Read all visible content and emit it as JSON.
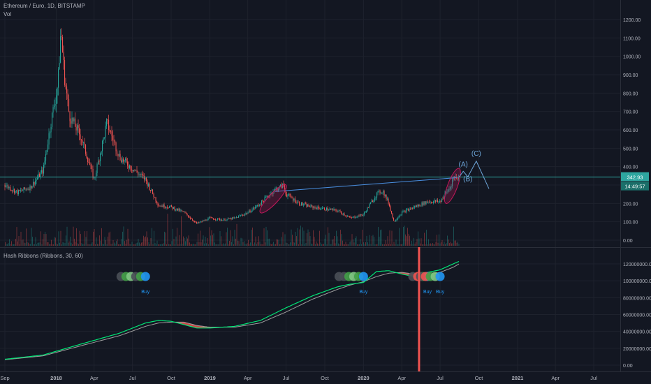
{
  "chart_data": [
    {
      "type": "candlestick",
      "title": "Ethereum / Euro, 1D, BITSTAMP",
      "volume_label": "Vol",
      "x_ticks": [
        "Sep",
        "2018",
        "Apr",
        "Jul",
        "Oct",
        "2019",
        "Apr",
        "Jul",
        "Oct",
        "2020",
        "Apr",
        "Jul",
        "Oct",
        "2021",
        "Apr",
        "Jul"
      ],
      "y_ticks": [
        "0.00",
        "100.00",
        "200.00",
        "300.00",
        "400.00",
        "500.00",
        "600.00",
        "700.00",
        "800.00",
        "900.00",
        "1000.00",
        "1100.00",
        "1200.00"
      ],
      "ylim": [
        -20,
        1260
      ],
      "price_path": [
        {
          "x": "2017-09",
          "y": 300
        },
        {
          "x": "2017-10",
          "y": 260
        },
        {
          "x": "2017-11",
          "y": 290
        },
        {
          "x": "2017-12",
          "y": 380
        },
        {
          "x": "2017-12-20",
          "y": 650
        },
        {
          "x": "2018-01-05",
          "y": 850
        },
        {
          "x": "2018-01-12",
          "y": 1150
        },
        {
          "x": "2018-01-20",
          "y": 900
        },
        {
          "x": "2018-02",
          "y": 680
        },
        {
          "x": "2018-03",
          "y": 560
        },
        {
          "x": "2018-04",
          "y": 330
        },
        {
          "x": "2018-04-25",
          "y": 570
        },
        {
          "x": "2018-05",
          "y": 640
        },
        {
          "x": "2018-06",
          "y": 450
        },
        {
          "x": "2018-07",
          "y": 390
        },
        {
          "x": "2018-08",
          "y": 330
        },
        {
          "x": "2018-09",
          "y": 190
        },
        {
          "x": "2018-10",
          "y": 180
        },
        {
          "x": "2018-11",
          "y": 150
        },
        {
          "x": "2018-12",
          "y": 90
        },
        {
          "x": "2019-01",
          "y": 120
        },
        {
          "x": "2019-02",
          "y": 110
        },
        {
          "x": "2019-03",
          "y": 120
        },
        {
          "x": "2019-04",
          "y": 150
        },
        {
          "x": "2019-05",
          "y": 200
        },
        {
          "x": "2019-06",
          "y": 270
        },
        {
          "x": "2019-06-25",
          "y": 300
        },
        {
          "x": "2019-07",
          "y": 250
        },
        {
          "x": "2019-08",
          "y": 200
        },
        {
          "x": "2019-09",
          "y": 180
        },
        {
          "x": "2019-10",
          "y": 170
        },
        {
          "x": "2019-11",
          "y": 160
        },
        {
          "x": "2019-12",
          "y": 120
        },
        {
          "x": "2020-01",
          "y": 140
        },
        {
          "x": "2020-02",
          "y": 250
        },
        {
          "x": "2020-02-15",
          "y": 270
        },
        {
          "x": "2020-03",
          "y": 200
        },
        {
          "x": "2020-03-13",
          "y": 100
        },
        {
          "x": "2020-04",
          "y": 150
        },
        {
          "x": "2020-05",
          "y": 180
        },
        {
          "x": "2020-06",
          "y": 210
        },
        {
          "x": "2020-07",
          "y": 210
        },
        {
          "x": "2020-07-25",
          "y": 290
        },
        {
          "x": "2020-08",
          "y": 340
        },
        {
          "x": "2020-08-15",
          "y": 343
        }
      ],
      "projection": [
        {
          "x": "2020-08-15",
          "y": 343
        },
        {
          "x": "2020-08-25",
          "y": 375
        },
        {
          "x": "2020-09-05",
          "y": 345
        },
        {
          "x": "2020-09-25",
          "y": 430
        },
        {
          "x": "2020-10-25",
          "y": 280
        }
      ],
      "wave_labels": [
        {
          "label": "(A)",
          "x": "2020-08-25",
          "y": 400
        },
        {
          "label": "(B)",
          "x": "2020-09-05",
          "y": 320
        },
        {
          "label": "(C)",
          "x": "2020-09-25",
          "y": 460
        }
      ],
      "trendline": [
        {
          "x": "2019-06-05",
          "y": 265
        },
        {
          "x": "2020-08-10",
          "y": 340
        }
      ],
      "horizontal_line": 343,
      "current_price": "342.93",
      "countdown": "14:49:57",
      "highlight_ellipses": [
        {
          "from": "2019-05",
          "to": "2019-07",
          "y_low": 150,
          "y_high": 300
        },
        {
          "from": "2020-07-15",
          "to": "2020-08-15",
          "y_low": 200,
          "y_high": 390
        }
      ],
      "colors": {
        "up": "#26a69a",
        "down": "#ef5350",
        "trend": "#4a90e2",
        "hline": "#2ea6a0",
        "projection": "#6fa8dc",
        "ellipse": "#c2185b"
      }
    },
    {
      "type": "line",
      "title": "Hash Ribbons (Ribbons, 30, 60)",
      "y_ticks": [
        "0.00",
        "20000000.00",
        "40000000.00",
        "60000000.00",
        "80000000.00",
        "100000000.00",
        "120000000.00"
      ],
      "ylim": [
        -6000000,
        128000000
      ],
      "series": [
        {
          "name": "",
          "color": "#00e676",
          "values": [
            {
              "x": "2017-09",
              "y": 7000000
            },
            {
              "x": "2017-12",
              "y": 12000000
            },
            {
              "x": "2018-03",
              "y": 25000000
            },
            {
              "x": "2018-06",
              "y": 38000000
            },
            {
              "x": "2018-08",
              "y": 50000000
            },
            {
              "x": "2018-09",
              "y": 53000000
            },
            {
              "x": "2018-10",
              "y": 52000000
            },
            {
              "x": "2018-11",
              "y": 48000000
            },
            {
              "x": "2018-12",
              "y": 44000000
            },
            {
              "x": "2019-01",
              "y": 44000000
            },
            {
              "x": "2019-03",
              "y": 46000000
            },
            {
              "x": "2019-05",
              "y": 53000000
            },
            {
              "x": "2019-07",
              "y": 68000000
            },
            {
              "x": "2019-09",
              "y": 82000000
            },
            {
              "x": "2019-11",
              "y": 93000000
            },
            {
              "x": "2019-12",
              "y": 96000000
            },
            {
              "x": "2020-01",
              "y": 98000000
            },
            {
              "x": "2020-02",
              "y": 111000000
            },
            {
              "x": "2020-03",
              "y": 112000000
            },
            {
              "x": "2020-04",
              "y": 108000000
            },
            {
              "x": "2020-05",
              "y": 105000000
            },
            {
              "x": "2020-06",
              "y": 110000000
            },
            {
              "x": "2020-07",
              "y": 113000000
            },
            {
              "x": "2020-08",
              "y": 120000000
            },
            {
              "x": "2020-08-15",
              "y": 123000000
            }
          ]
        },
        {
          "name": "",
          "color": "#9e9e9e",
          "values": [
            {
              "x": "2017-09",
              "y": 6500000
            },
            {
              "x": "2017-12",
              "y": 11000000
            },
            {
              "x": "2018-03",
              "y": 23000000
            },
            {
              "x": "2018-06",
              "y": 35000000
            },
            {
              "x": "2018-08",
              "y": 46000000
            },
            {
              "x": "2018-09",
              "y": 50000000
            },
            {
              "x": "2018-10",
              "y": 51000000
            },
            {
              "x": "2018-11",
              "y": 51000000
            },
            {
              "x": "2018-12",
              "y": 47000000
            },
            {
              "x": "2019-01",
              "y": 45000000
            },
            {
              "x": "2019-03",
              "y": 45000000
            },
            {
              "x": "2019-05",
              "y": 50000000
            },
            {
              "x": "2019-07",
              "y": 63000000
            },
            {
              "x": "2019-09",
              "y": 78000000
            },
            {
              "x": "2019-11",
              "y": 90000000
            },
            {
              "x": "2019-12",
              "y": 95000000
            },
            {
              "x": "2020-01",
              "y": 99000000
            },
            {
              "x": "2020-02",
              "y": 105000000
            },
            {
              "x": "2020-03",
              "y": 109000000
            },
            {
              "x": "2020-04",
              "y": 110000000
            },
            {
              "x": "2020-05",
              "y": 108000000
            },
            {
              "x": "2020-06",
              "y": 107000000
            },
            {
              "x": "2020-07",
              "y": 110000000
            },
            {
              "x": "2020-08",
              "y": 116000000
            },
            {
              "x": "2020-08-15",
              "y": 120000000
            }
          ]
        }
      ],
      "signal_clusters": [
        {
          "x": "2018-08",
          "label": "Buy"
        },
        {
          "x": "2020-01",
          "label": "Buy"
        },
        {
          "x": "2020-06",
          "label": "Buy"
        },
        {
          "x": "2020-07",
          "label": "Buy"
        }
      ],
      "vertical_marker": "2020-05-12",
      "colors": {
        "dot_dark": "#4a4f57",
        "dot_green": "#43a047",
        "dot_light": "#81c784",
        "dot_red": "#ef5350",
        "dot_blue": "#2196f3",
        "buy_text": "#2196f3",
        "marker": "#ef5350"
      }
    }
  ]
}
